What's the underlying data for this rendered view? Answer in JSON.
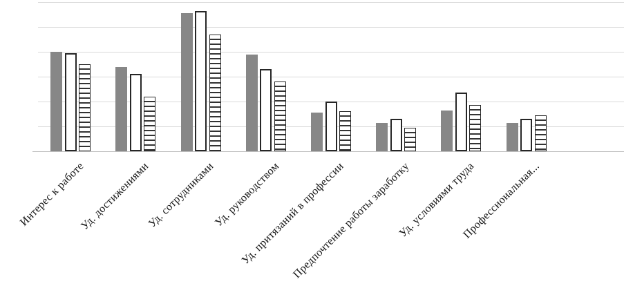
{
  "chart_data": {
    "type": "bar",
    "title": "",
    "xlabel": "",
    "ylabel": "",
    "ylim": [
      0,
      6
    ],
    "gridline_step": 1,
    "grid": "horizontal",
    "legend_position": "none",
    "categories": [
      "Интерес к работе",
      "Уд. достижениями",
      "Уд. сотрудниками",
      "Уд. руководством",
      "Уд. притязаний в профессии",
      "Предпочтение работы заработку",
      "Уд. условиями труда",
      "Профессиональная..."
    ],
    "series": [
      {
        "name": "solid-gray-bars",
        "fill_style": "solid",
        "color": "#878787",
        "values": [
          4.0,
          3.4,
          5.55,
          3.9,
          1.55,
          1.15,
          1.65,
          1.15
        ]
      },
      {
        "name": "white-outline-bars",
        "fill_style": "white-outline",
        "color": "#ffffff",
        "values": [
          3.95,
          3.1,
          5.65,
          3.3,
          2.0,
          1.3,
          2.35,
          1.3
        ]
      },
      {
        "name": "striped-bars",
        "fill_style": "horizontal-stripes",
        "color": "#333333",
        "values": [
          3.5,
          2.2,
          4.7,
          2.8,
          1.6,
          0.95,
          1.85,
          1.45
        ]
      }
    ],
    "colors": {
      "gridline": "#d9d9d9",
      "axis": "#bfbfbf",
      "bar_solid": "#878787",
      "bar_border": "#262626",
      "label_text": "#141414"
    }
  }
}
